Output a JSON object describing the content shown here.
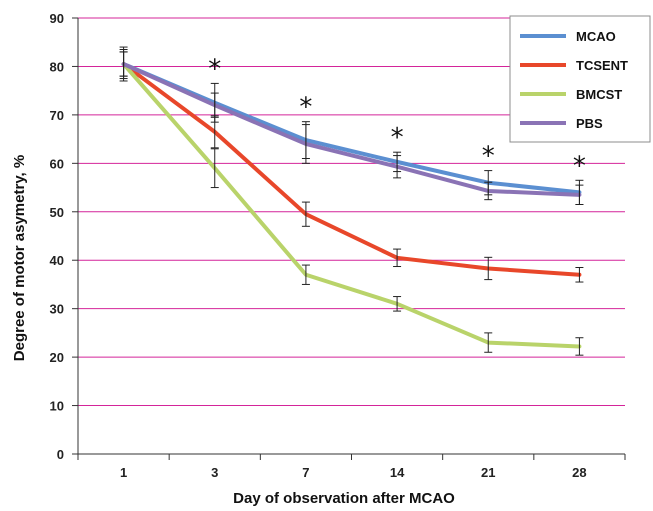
{
  "chart_data": {
    "type": "line",
    "title": "",
    "xlabel": "Day of observation after MCAO",
    "ylabel": "Degree of motor asymetry, %",
    "categories": [
      "1",
      "3",
      "7",
      "14",
      "21",
      "28"
    ],
    "ylim": [
      0,
      90
    ],
    "yticks": [
      "0",
      "10",
      "20",
      "30",
      "40",
      "50",
      "60",
      "70",
      "80",
      "90"
    ],
    "grid": true,
    "grid_color": "#d4249a",
    "legend_position": "top-right",
    "series": [
      {
        "name": "MCAO",
        "color": "#5b8fd1",
        "values": [
          80.5,
          72.5,
          64.8,
          60.3,
          56.0,
          54.0
        ],
        "errors": [
          3.5,
          4.0,
          3.8,
          2.0,
          2.5,
          2.5
        ]
      },
      {
        "name": "TCSENT",
        "color": "#e8472a",
        "values": [
          80.5,
          66.5,
          49.5,
          40.5,
          38.3,
          37.0
        ],
        "errors": [
          3.0,
          3.3,
          2.5,
          1.8,
          2.3,
          1.5
        ]
      },
      {
        "name": "BMCST",
        "color": "#b9d36a",
        "values": [
          80.5,
          59.0,
          37.0,
          31.0,
          23.0,
          22.2
        ],
        "errors": [
          2.5,
          4.0,
          2.0,
          1.5,
          2.0,
          1.8
        ]
      },
      {
        "name": "PBS",
        "color": "#8a73b5",
        "values": [
          80.5,
          72.0,
          64.0,
          59.3,
          54.3,
          53.5
        ],
        "errors": [
          2.5,
          2.5,
          4.0,
          2.3,
          1.8,
          2.0
        ]
      }
    ],
    "annotations": [
      "*",
      "*",
      "*",
      "*",
      "*"
    ]
  }
}
